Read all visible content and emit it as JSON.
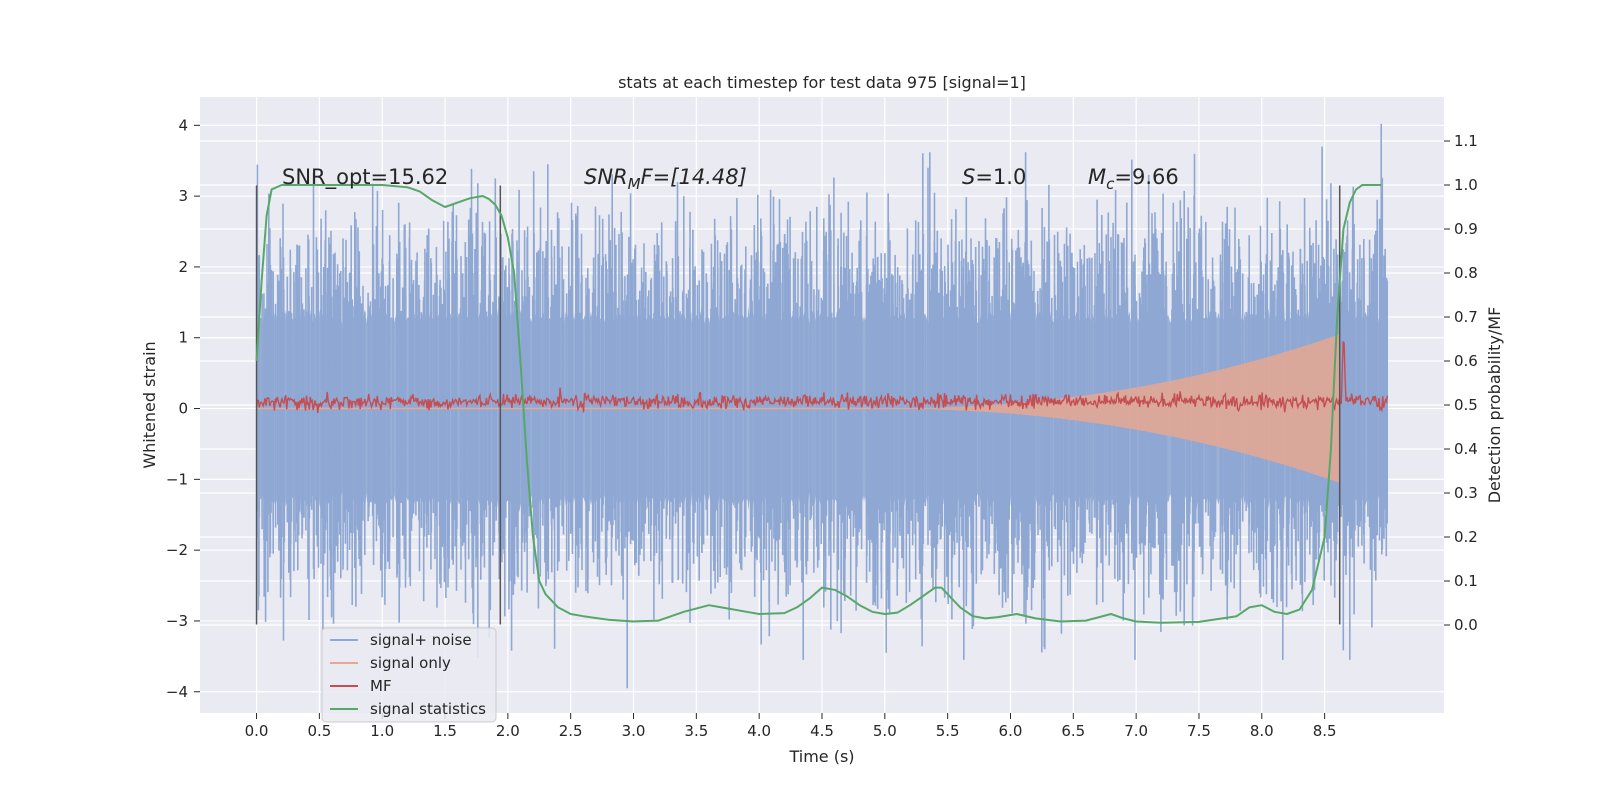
{
  "chart_data": {
    "type": "line",
    "title": "stats at each timestep for test data 975 [signal=1]",
    "xlabel": "Time (s)",
    "ylabel": "Whitened strain",
    "ylabel_right": "Detection probability/MF",
    "xlim": [
      -0.45,
      9.45
    ],
    "ylim": [
      -4.3,
      4.4
    ],
    "ylim_right": [
      -0.2,
      1.2
    ],
    "x_ticks": [
      "0.0",
      "0.5",
      "1.0",
      "1.5",
      "2.0",
      "2.5",
      "3.0",
      "3.5",
      "4.0",
      "4.5",
      "5.0",
      "5.5",
      "6.0",
      "6.5",
      "7.0",
      "7.5",
      "8.0",
      "8.5"
    ],
    "y_ticks": [
      "4",
      "3",
      "2",
      "1",
      "0",
      "−1",
      "−2",
      "−3",
      "−4"
    ],
    "y_right_ticks": [
      "1.1",
      "1.0",
      "0.9",
      "0.8",
      "0.7",
      "0.6",
      "0.5",
      "0.4",
      "0.3",
      "0.2",
      "0.1",
      "0.0"
    ],
    "grid": true,
    "legend_position": "lower-left",
    "annotations": {
      "snr_opt": "SNR_opt=15.62",
      "snr_mf_prefix": "SNR",
      "snr_mf_sub": "M",
      "snr_mf_rest": "F=[14.48]",
      "s_var": "S",
      "s_val": "=1.0",
      "mc_var": "M",
      "mc_sub": "c",
      "mc_val": "=9.66"
    },
    "vlines": [
      0.0,
      1.94,
      8.62
    ],
    "vline_range": [
      -3.05,
      3.15
    ],
    "series": [
      {
        "name": "signal+ noise",
        "color": "#8fa8d3",
        "axis": "left",
        "x_range": [
          0.0,
          9.0
        ],
        "envelope_abs": 1.3,
        "peak_range": [
          -3.95,
          4.02
        ]
      },
      {
        "name": "signal only",
        "color": "#e8a790",
        "axis": "left",
        "x_range": [
          0.0,
          8.62
        ],
        "chirp_start": 4.9,
        "max_amplitude": 1.05
      },
      {
        "name": "MF",
        "color": "#c44e52",
        "axis": "left",
        "x_range": [
          0.0,
          9.0
        ],
        "baseline": 0.1,
        "peak_time": 8.65,
        "peak_value": 1.02
      },
      {
        "name": "signal statistics",
        "color": "#55a868",
        "axis": "right",
        "x": [
          0.0,
          0.04,
          0.08,
          0.12,
          0.2,
          0.3,
          0.5,
          0.7,
          1.0,
          1.2,
          1.3,
          1.4,
          1.5,
          1.6,
          1.7,
          1.8,
          1.85,
          1.9,
          1.95,
          2.0,
          2.05,
          2.1,
          2.15,
          2.2,
          2.25,
          2.3,
          2.4,
          2.5,
          2.6,
          2.8,
          3.0,
          3.2,
          3.4,
          3.6,
          3.7,
          3.9,
          4.0,
          4.2,
          4.3,
          4.4,
          4.5,
          4.6,
          4.7,
          4.8,
          4.9,
          5.0,
          5.1,
          5.2,
          5.3,
          5.4,
          5.45,
          5.5,
          5.6,
          5.7,
          5.8,
          5.9,
          6.05,
          6.2,
          6.4,
          6.6,
          6.8,
          6.9,
          7.0,
          7.2,
          7.5,
          7.8,
          7.9,
          8.0,
          8.1,
          8.2,
          8.3,
          8.4,
          8.5,
          8.55,
          8.6,
          8.65,
          8.7,
          8.75,
          8.8,
          8.9,
          8.95
        ],
        "y": [
          0.6,
          0.78,
          0.93,
          0.99,
          1.0,
          1.0,
          1.0,
          1.0,
          1.0,
          0.995,
          0.985,
          0.965,
          0.95,
          0.96,
          0.97,
          0.975,
          0.968,
          0.955,
          0.93,
          0.88,
          0.8,
          0.6,
          0.38,
          0.2,
          0.1,
          0.07,
          0.04,
          0.025,
          0.02,
          0.012,
          0.008,
          0.01,
          0.03,
          0.045,
          0.04,
          0.03,
          0.025,
          0.027,
          0.04,
          0.06,
          0.085,
          0.08,
          0.065,
          0.045,
          0.03,
          0.025,
          0.028,
          0.045,
          0.065,
          0.085,
          0.085,
          0.07,
          0.04,
          0.02,
          0.015,
          0.018,
          0.025,
          0.015,
          0.008,
          0.01,
          0.025,
          0.015,
          0.008,
          0.005,
          0.007,
          0.02,
          0.04,
          0.045,
          0.03,
          0.025,
          0.035,
          0.08,
          0.2,
          0.4,
          0.7,
          0.9,
          0.96,
          0.99,
          1.0,
          1.0,
          1.0
        ]
      }
    ]
  }
}
